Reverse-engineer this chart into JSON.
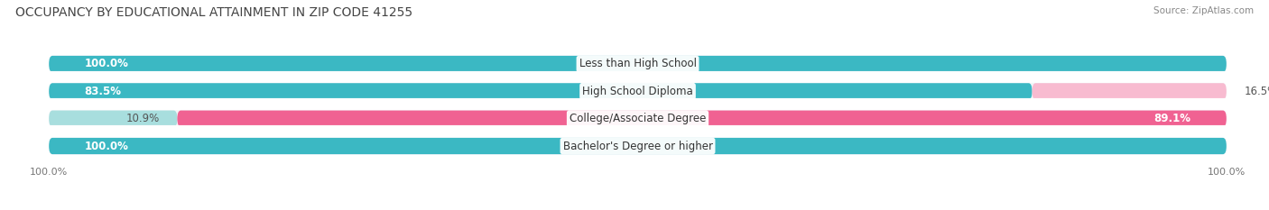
{
  "title": "OCCUPANCY BY EDUCATIONAL ATTAINMENT IN ZIP CODE 41255",
  "source": "Source: ZipAtlas.com",
  "categories": [
    "Less than High School",
    "High School Diploma",
    "College/Associate Degree",
    "Bachelor's Degree or higher"
  ],
  "owner_values": [
    100.0,
    83.5,
    10.9,
    100.0
  ],
  "renter_values": [
    0.0,
    16.5,
    89.1,
    0.0
  ],
  "owner_color": "#3BB8C3",
  "renter_color": "#F06292",
  "owner_light_color": "#A8DEDE",
  "renter_light_color": "#F8BBD0",
  "background_color": "#FFFFFF",
  "row_bg_color": "#F2F5F8",
  "separator_color": "#FFFFFF",
  "title_fontsize": 10,
  "source_fontsize": 8,
  "label_fontsize": 8.5,
  "bar_height": 0.6,
  "figsize": [
    14.06,
    2.33
  ],
  "dpi": 100,
  "xlim": [
    -2,
    102
  ]
}
